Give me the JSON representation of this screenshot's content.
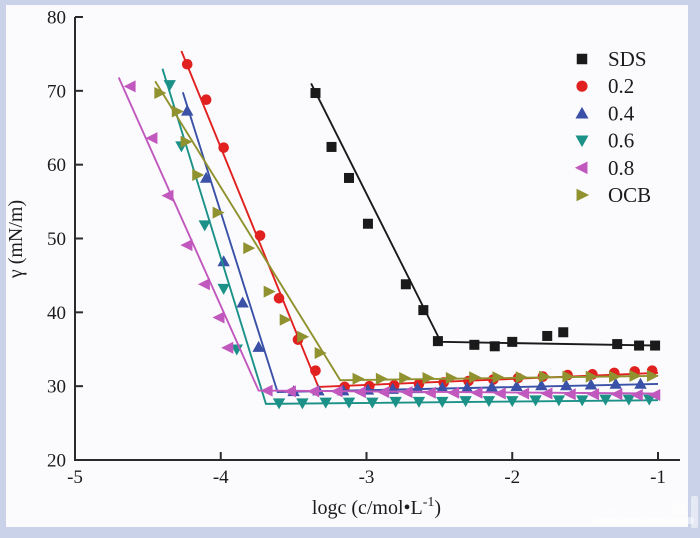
{
  "figure": {
    "frame_color": "#c9d2e9",
    "inner_color": "#fbfbfd",
    "axis_color": "#2b2b2b",
    "text_color": "#1c1c1c"
  },
  "chart_data": {
    "type": "scatter",
    "title": "",
    "xlabel": "logc (c/mol•L⁻¹)",
    "xlabel_parts": {
      "prefix": "logc (c/mol•L",
      "superscript": "-1",
      "suffix": ")"
    },
    "ylabel": "γ (mN/m)",
    "xlim": [
      -5,
      -1
    ],
    "ylim": [
      20,
      80
    ],
    "x_ticks": [
      -5,
      -4,
      -3,
      -2,
      -1
    ],
    "y_ticks": [
      20,
      30,
      40,
      50,
      60,
      70,
      80
    ],
    "grid": false,
    "legend_position": "upper right",
    "series": [
      {
        "name": "SDS",
        "label": "SDS",
        "color": "#1a1a1a",
        "marker": "square",
        "line": [
          [
            -3.38,
            71.0
          ],
          [
            -2.49,
            36.0
          ],
          [
            -1.0,
            35.5
          ]
        ],
        "points": [
          [
            -3.35,
            69.7
          ],
          [
            -3.24,
            62.4
          ],
          [
            -3.12,
            58.2
          ],
          [
            -2.99,
            52.0
          ],
          [
            -2.73,
            43.8
          ],
          [
            -2.61,
            40.3
          ],
          [
            -2.51,
            36.1
          ],
          [
            -2.26,
            35.6
          ],
          [
            -2.12,
            35.4
          ],
          [
            -2.0,
            36.0
          ],
          [
            -1.76,
            36.8
          ],
          [
            -1.65,
            37.3
          ],
          [
            -1.28,
            35.7
          ],
          [
            -1.13,
            35.5
          ],
          [
            -1.02,
            35.5
          ]
        ]
      },
      {
        "name": "0.2",
        "label": "0.2",
        "color": "#e1211f",
        "marker": "circle",
        "line": [
          [
            -4.27,
            75.4
          ],
          [
            -3.33,
            29.9
          ],
          [
            -1.0,
            31.8
          ]
        ],
        "points": [
          [
            -4.23,
            73.6
          ],
          [
            -4.1,
            68.8
          ],
          [
            -3.98,
            62.3
          ],
          [
            -3.73,
            50.4
          ],
          [
            -3.6,
            41.9
          ],
          [
            -3.47,
            36.3
          ],
          [
            -3.35,
            32.1
          ],
          [
            -3.15,
            29.9
          ],
          [
            -2.98,
            30.0
          ],
          [
            -2.81,
            30.1
          ],
          [
            -2.64,
            30.3
          ],
          [
            -2.47,
            30.5
          ],
          [
            -2.3,
            30.7
          ],
          [
            -2.13,
            30.9
          ],
          [
            -1.96,
            31.1
          ],
          [
            -1.79,
            31.3
          ],
          [
            -1.62,
            31.5
          ],
          [
            -1.45,
            31.6
          ],
          [
            -1.3,
            31.8
          ],
          [
            -1.16,
            32.0
          ],
          [
            -1.04,
            32.1
          ]
        ]
      },
      {
        "name": "0.4",
        "label": "0.4",
        "color": "#3a51a7",
        "marker": "triangle-up",
        "line": [
          [
            -4.26,
            69.8
          ],
          [
            -3.61,
            29.2
          ],
          [
            -1.0,
            30.3
          ]
        ],
        "points": [
          [
            -4.23,
            67.3
          ],
          [
            -4.1,
            58.2
          ],
          [
            -3.98,
            46.9
          ],
          [
            -3.85,
            41.3
          ],
          [
            -3.74,
            35.3
          ],
          [
            -3.5,
            29.3
          ],
          [
            -3.33,
            29.4
          ],
          [
            -3.16,
            29.4
          ],
          [
            -2.99,
            29.5
          ],
          [
            -2.82,
            29.6
          ],
          [
            -2.65,
            29.7
          ],
          [
            -2.48,
            29.8
          ],
          [
            -2.31,
            29.8
          ],
          [
            -2.14,
            29.9
          ],
          [
            -1.97,
            30.0
          ],
          [
            -1.8,
            30.1
          ],
          [
            -1.63,
            30.1
          ],
          [
            -1.46,
            30.2
          ],
          [
            -1.29,
            30.3
          ],
          [
            -1.12,
            30.3
          ]
        ]
      },
      {
        "name": "0.6",
        "label": "0.6",
        "color": "#1b9188",
        "marker": "triangle-down",
        "line": [
          [
            -4.4,
            73.0
          ],
          [
            -3.69,
            27.6
          ],
          [
            -1.0,
            28.1
          ]
        ],
        "points": [
          [
            -4.35,
            70.8
          ],
          [
            -4.27,
            62.5
          ],
          [
            -4.11,
            51.8
          ],
          [
            -3.98,
            43.2
          ],
          [
            -3.89,
            35.0
          ],
          [
            -3.6,
            27.7
          ],
          [
            -3.44,
            27.7
          ],
          [
            -3.28,
            27.8
          ],
          [
            -3.12,
            27.8
          ],
          [
            -2.96,
            27.8
          ],
          [
            -2.8,
            27.9
          ],
          [
            -2.64,
            27.9
          ],
          [
            -2.48,
            27.9
          ],
          [
            -2.32,
            28.0
          ],
          [
            -2.16,
            28.0
          ],
          [
            -2.0,
            28.0
          ],
          [
            -1.84,
            28.1
          ],
          [
            -1.68,
            28.1
          ],
          [
            -1.52,
            28.1
          ],
          [
            -1.36,
            28.2
          ],
          [
            -1.2,
            28.2
          ],
          [
            -1.06,
            28.2
          ]
        ]
      },
      {
        "name": "0.8",
        "label": "0.8",
        "color": "#c158bd",
        "marker": "triangle-left",
        "line": [
          [
            -4.7,
            71.8
          ],
          [
            -3.74,
            29.4
          ],
          [
            -1.0,
            29.0
          ]
        ],
        "points": [
          [
            -4.62,
            70.6
          ],
          [
            -4.47,
            63.6
          ],
          [
            -4.36,
            55.8
          ],
          [
            -4.23,
            49.1
          ],
          [
            -4.11,
            43.8
          ],
          [
            -4.01,
            39.3
          ],
          [
            -3.95,
            35.2
          ],
          [
            -3.68,
            29.4
          ],
          [
            -3.52,
            29.3
          ],
          [
            -3.36,
            29.3
          ],
          [
            -3.2,
            29.3
          ],
          [
            -3.04,
            29.2
          ],
          [
            -2.88,
            29.2
          ],
          [
            -2.72,
            29.2
          ],
          [
            -2.56,
            29.1
          ],
          [
            -2.4,
            29.1
          ],
          [
            -2.24,
            29.1
          ],
          [
            -2.08,
            29.0
          ],
          [
            -1.92,
            29.0
          ],
          [
            -1.76,
            29.0
          ],
          [
            -1.6,
            28.9
          ],
          [
            -1.44,
            28.9
          ],
          [
            -1.28,
            28.9
          ],
          [
            -1.14,
            28.8
          ],
          [
            -1.02,
            28.8
          ]
        ]
      },
      {
        "name": "OCB",
        "label": "OCB",
        "color": "#90912f",
        "marker": "triangle-right",
        "line": [
          [
            -4.45,
            71.3
          ],
          [
            -3.18,
            30.8
          ],
          [
            -1.0,
            31.4
          ]
        ],
        "points": [
          [
            -4.42,
            69.7
          ],
          [
            -4.3,
            67.2
          ],
          [
            -4.24,
            63.1
          ],
          [
            -4.16,
            58.6
          ],
          [
            -4.02,
            53.5
          ],
          [
            -3.81,
            48.7
          ],
          [
            -3.67,
            42.8
          ],
          [
            -3.56,
            39.0
          ],
          [
            -3.44,
            36.7
          ],
          [
            -3.32,
            34.5
          ],
          [
            -3.06,
            31.0
          ],
          [
            -2.9,
            31.0
          ],
          [
            -2.74,
            31.1
          ],
          [
            -2.58,
            31.1
          ],
          [
            -2.42,
            31.1
          ],
          [
            -2.26,
            31.2
          ],
          [
            -2.1,
            31.2
          ],
          [
            -1.94,
            31.2
          ],
          [
            -1.78,
            31.3
          ],
          [
            -1.62,
            31.3
          ],
          [
            -1.46,
            31.3
          ],
          [
            -1.3,
            31.3
          ],
          [
            -1.16,
            31.4
          ],
          [
            -1.04,
            31.4
          ]
        ]
      }
    ]
  }
}
